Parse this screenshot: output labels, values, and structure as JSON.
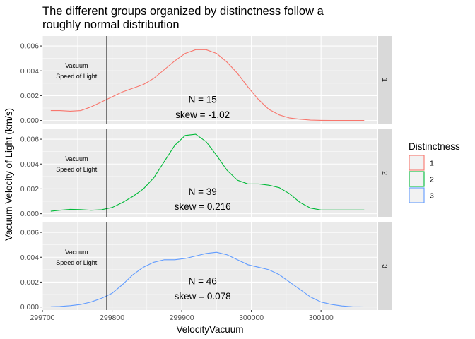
{
  "chart_data": {
    "type": "density",
    "title": "The different groups organized by distinctness follow a roughly normal distribution",
    "title_lines": [
      "The different groups organized by distinctness follow a",
      "roughly normal distribution"
    ],
    "xlabel": "VelocityVacuum",
    "ylabel": "Vacuum Velocity of Light (km/s)",
    "xlim": [
      299700,
      300180
    ],
    "ylim": [
      -0.00025,
      0.0068
    ],
    "x_ticks": [
      299700,
      299800,
      299900,
      300000,
      300100
    ],
    "y_ticks": [
      0,
      0.002,
      0.004,
      0.006
    ],
    "y_tick_labels": [
      "0.000",
      "0.002",
      "0.004",
      "0.006"
    ],
    "grid": true,
    "facet": "rows",
    "vline": {
      "x": 299792.5,
      "label_lines": [
        "Vacuum",
        "Speed of Light"
      ]
    },
    "legend": {
      "title": "Distinctness",
      "position": "right"
    },
    "series": [
      {
        "name": "1",
        "color": "#F8766D",
        "annotation": {
          "n_line": "N =  15",
          "skew_line": "skew =  -1.02"
        },
        "x": [
          299712,
          299725,
          299740,
          299755,
          299770,
          299785,
          299800,
          299815,
          299830,
          299845,
          299860,
          299875,
          299890,
          299905,
          299920,
          299935,
          299950,
          299965,
          299980,
          299995,
          300010,
          300025,
          300040,
          300055,
          300070,
          300085,
          300100,
          300115,
          300130,
          300145,
          300162
        ],
        "y": [
          0.0008,
          0.0008,
          0.00075,
          0.0008,
          0.0011,
          0.0015,
          0.0019,
          0.0023,
          0.0026,
          0.0029,
          0.0034,
          0.0041,
          0.0048,
          0.0054,
          0.0057,
          0.0057,
          0.0054,
          0.0047,
          0.0038,
          0.0027,
          0.0017,
          0.0009,
          0.00045,
          0.0002,
          0.0001,
          3e-05,
          1e-05,
          5e-06,
          0,
          0,
          0
        ]
      },
      {
        "name": "2",
        "color": "#00BA38",
        "annotation": {
          "n_line": "N =  39",
          "skew_line": "skew =  0.216"
        },
        "x": [
          299712,
          299725,
          299740,
          299755,
          299770,
          299785,
          299800,
          299815,
          299830,
          299845,
          299860,
          299875,
          299890,
          299905,
          299920,
          299935,
          299950,
          299965,
          299980,
          299995,
          300010,
          300025,
          300040,
          300055,
          300070,
          300085,
          300100,
          300115,
          300130,
          300145,
          300162
        ],
        "y": [
          0.0002,
          0.00028,
          0.00035,
          0.00033,
          0.00028,
          0.00032,
          0.0005,
          0.0009,
          0.0014,
          0.002,
          0.0029,
          0.0042,
          0.0055,
          0.0063,
          0.0064,
          0.0058,
          0.0047,
          0.0035,
          0.0027,
          0.0024,
          0.0024,
          0.0023,
          0.0021,
          0.0016,
          0.0009,
          0.00045,
          0.0003,
          0.0003,
          0.0003,
          0.0003,
          0.0003
        ]
      },
      {
        "name": "3",
        "color": "#619CFF",
        "annotation": {
          "n_line": "N =  46",
          "skew_line": "skew =  0.078"
        },
        "x": [
          299712,
          299725,
          299740,
          299755,
          299770,
          299785,
          299800,
          299815,
          299830,
          299845,
          299860,
          299875,
          299890,
          299905,
          299920,
          299935,
          299950,
          299965,
          299980,
          299995,
          300010,
          300025,
          300040,
          300055,
          300070,
          300085,
          300100,
          300115,
          300130,
          300145,
          300162
        ],
        "y": [
          2e-05,
          4e-05,
          0.0001,
          0.0002,
          0.0004,
          0.0007,
          0.0011,
          0.0018,
          0.0026,
          0.0032,
          0.0036,
          0.0038,
          0.0038,
          0.0039,
          0.0041,
          0.0043,
          0.0044,
          0.0042,
          0.0038,
          0.0034,
          0.0032,
          0.003,
          0.0026,
          0.002,
          0.0014,
          0.0008,
          0.0004,
          0.0002,
          8e-05,
          2e-05,
          5e-06
        ]
      }
    ]
  }
}
